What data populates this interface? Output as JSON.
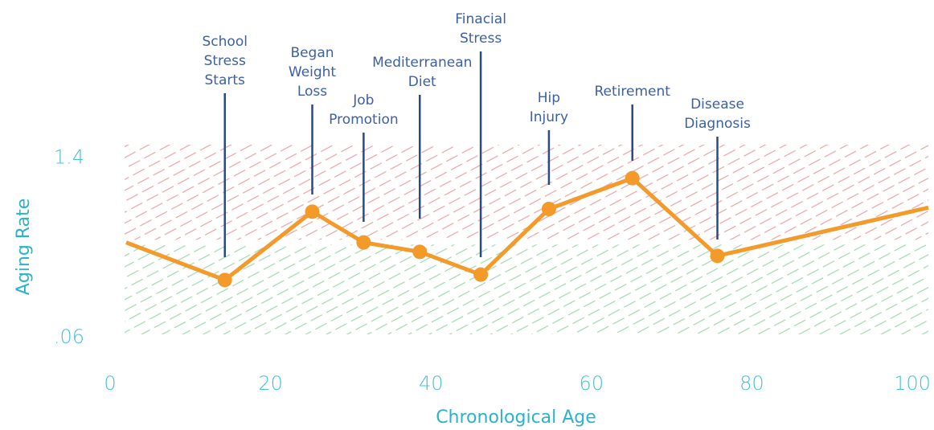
{
  "chart_data": {
    "type": "line",
    "x_label": "Chronological Age",
    "y_label": "Aging Rate",
    "x": [
      2.0,
      14.3,
      25.2,
      31.6,
      38.6,
      46.2,
      54.7,
      65.1,
      75.7,
      102
    ],
    "values": [
      0.77,
      0.49,
      1.0,
      0.77,
      0.7,
      0.53,
      1.02,
      1.25,
      0.67,
      1.03
    ],
    "color": "#f39a2b",
    "reference_line": 0.79,
    "xlim": [
      0,
      102
    ],
    "xticks": [
      0,
      20,
      40,
      60,
      80,
      100
    ],
    "ylim": [
      0,
      1.5
    ],
    "yticks": [
      {
        "value": 0.06,
        "label": ".06"
      },
      1.4
    ],
    "annotations": [
      [
        "School",
        "Stress",
        "Starts"
      ],
      [
        "Began",
        "Weight",
        "Loss"
      ],
      [
        "Job",
        "Promotion"
      ],
      [
        "Mediterranean",
        "Diet"
      ],
      [
        "Finacial",
        "Stress"
      ],
      [
        "Hip",
        "Injury"
      ],
      [
        "Retirement"
      ],
      [
        "Disease",
        "Diagnosis"
      ]
    ]
  }
}
